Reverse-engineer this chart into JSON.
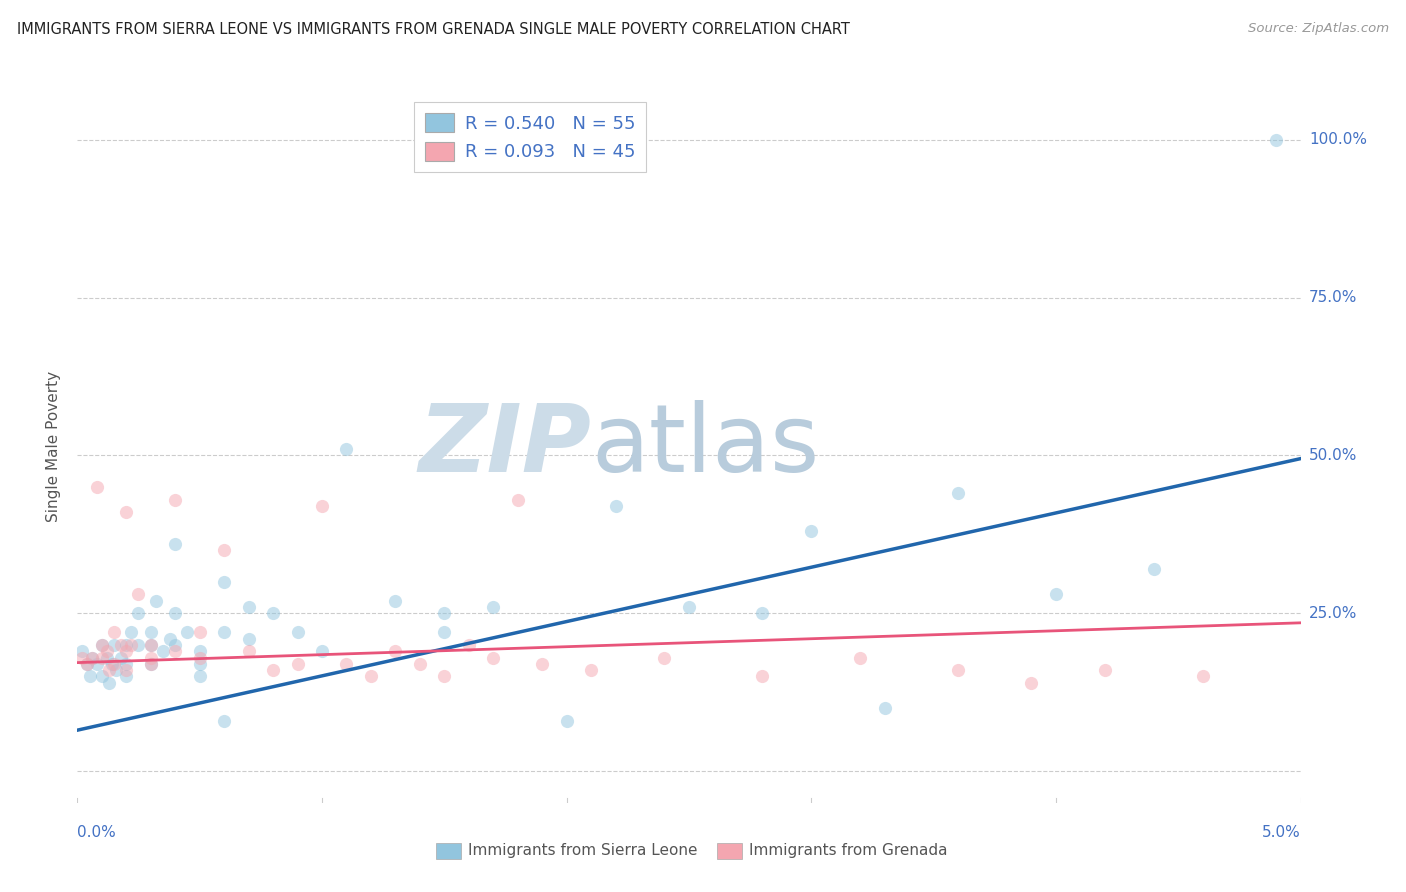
{
  "title": "IMMIGRANTS FROM SIERRA LEONE VS IMMIGRANTS FROM GRENADA SINGLE MALE POVERTY CORRELATION CHART",
  "source": "Source: ZipAtlas.com",
  "ylabel": "Single Male Poverty",
  "legend_label1": "Immigrants from Sierra Leone",
  "legend_label2": "Immigrants from Grenada",
  "R1": 0.54,
  "N1": 55,
  "R2": 0.093,
  "N2": 45,
  "color1": "#92c5de",
  "color2": "#f4a6b0",
  "line_color1": "#2166ac",
  "line_color2": "#e8547a",
  "watermark_zip": "ZIP",
  "watermark_atlas": "atlas",
  "watermark_color_zip": "#ccdce8",
  "watermark_color_atlas": "#b8ccdc",
  "xlim": [
    0.0,
    0.05
  ],
  "ylim": [
    -0.05,
    1.08
  ],
  "yticks": [
    0.0,
    0.25,
    0.5,
    0.75,
    1.0
  ],
  "yticklabels": [
    "",
    "25.0%",
    "50.0%",
    "75.0%",
    "100.0%"
  ],
  "xtick_left_label": "0.0%",
  "xtick_right_label": "5.0%",
  "xticks": [
    0.0,
    0.01,
    0.02,
    0.03,
    0.04,
    0.05
  ],
  "blue_x": [
    0.0002,
    0.0004,
    0.0005,
    0.0006,
    0.0008,
    0.001,
    0.001,
    0.0012,
    0.0013,
    0.0014,
    0.0015,
    0.0016,
    0.0018,
    0.002,
    0.002,
    0.002,
    0.0022,
    0.0025,
    0.0025,
    0.003,
    0.003,
    0.003,
    0.0032,
    0.0035,
    0.0038,
    0.004,
    0.004,
    0.004,
    0.0045,
    0.005,
    0.005,
    0.005,
    0.006,
    0.006,
    0.006,
    0.007,
    0.007,
    0.008,
    0.009,
    0.01,
    0.011,
    0.013,
    0.015,
    0.015,
    0.017,
    0.02,
    0.022,
    0.025,
    0.028,
    0.03,
    0.033,
    0.036,
    0.04,
    0.044,
    0.049
  ],
  "blue_y": [
    0.19,
    0.17,
    0.15,
    0.18,
    0.17,
    0.15,
    0.2,
    0.18,
    0.14,
    0.17,
    0.2,
    0.16,
    0.18,
    0.2,
    0.15,
    0.17,
    0.22,
    0.2,
    0.25,
    0.22,
    0.17,
    0.2,
    0.27,
    0.19,
    0.21,
    0.25,
    0.2,
    0.36,
    0.22,
    0.19,
    0.15,
    0.17,
    0.3,
    0.22,
    0.08,
    0.26,
    0.21,
    0.25,
    0.22,
    0.19,
    0.51,
    0.27,
    0.22,
    0.25,
    0.26,
    0.08,
    0.42,
    0.26,
    0.25,
    0.38,
    0.1,
    0.44,
    0.28,
    0.32,
    1.0
  ],
  "pink_x": [
    0.0002,
    0.0004,
    0.0006,
    0.0008,
    0.001,
    0.001,
    0.0012,
    0.0013,
    0.0015,
    0.0015,
    0.0018,
    0.002,
    0.002,
    0.002,
    0.0022,
    0.0025,
    0.003,
    0.003,
    0.003,
    0.004,
    0.004,
    0.005,
    0.005,
    0.006,
    0.007,
    0.008,
    0.009,
    0.01,
    0.011,
    0.012,
    0.013,
    0.014,
    0.015,
    0.016,
    0.017,
    0.018,
    0.019,
    0.021,
    0.024,
    0.028,
    0.032,
    0.036,
    0.039,
    0.042,
    0.046
  ],
  "pink_y": [
    0.18,
    0.17,
    0.18,
    0.45,
    0.2,
    0.18,
    0.19,
    0.16,
    0.22,
    0.17,
    0.2,
    0.41,
    0.19,
    0.16,
    0.2,
    0.28,
    0.18,
    0.17,
    0.2,
    0.43,
    0.19,
    0.18,
    0.22,
    0.35,
    0.19,
    0.16,
    0.17,
    0.42,
    0.17,
    0.15,
    0.19,
    0.17,
    0.15,
    0.2,
    0.18,
    0.43,
    0.17,
    0.16,
    0.18,
    0.15,
    0.18,
    0.16,
    0.14,
    0.16,
    0.15
  ],
  "blue_line_x": [
    0.0,
    0.05
  ],
  "blue_line_y": [
    0.065,
    0.495
  ],
  "pink_line_x": [
    0.0,
    0.05
  ],
  "pink_line_y": [
    0.172,
    0.235
  ],
  "background": "#ffffff",
  "grid_color": "#cccccc",
  "tick_color": "#4472c4",
  "marker_size": 90,
  "marker_alpha": 0.5
}
